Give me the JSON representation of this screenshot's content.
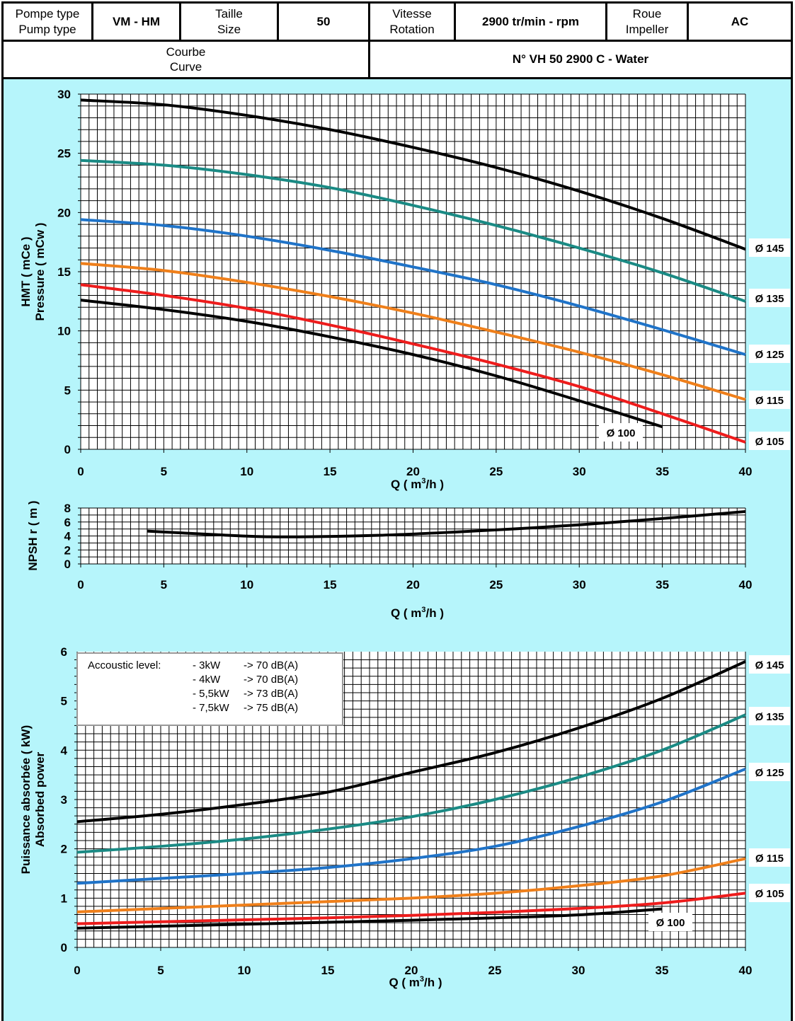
{
  "header": {
    "pump_type_fr": "Pompe type",
    "pump_type_en": "Pump type",
    "pump_type_value": "VM - HM",
    "size_fr": "Taille",
    "size_en": "Size",
    "size_value": "50",
    "speed_fr": "Vitesse",
    "speed_en": "Rotation",
    "speed_value": "2900 tr/min - rpm",
    "impeller_fr": "Roue",
    "impeller_en": "Impeller",
    "impeller_value": "AC",
    "curve_fr": "Courbe",
    "curve_en": "Curve",
    "curve_value": "N° VH 50 2900 C - Water"
  },
  "colors": {
    "background": "#b6f5fb",
    "d145": "#000000",
    "d135": "#1a8a84",
    "d125": "#1f73c8",
    "d115": "#ef7f1a",
    "d105": "#ee1c1c",
    "d100": "#000000"
  },
  "chart_data": [
    {
      "type": "line",
      "xlabel": "Q ( m³/h )",
      "ylabel": "HMT ( mCe )",
      "ylabel2": "Pressure ( mCw )",
      "xlim": [
        0,
        40
      ],
      "ylim": [
        0,
        30
      ],
      "xticks": [
        "0",
        "5",
        "10",
        "15",
        "20",
        "25",
        "30",
        "35",
        "40"
      ],
      "yticks": [
        "0",
        "5",
        "10",
        "15",
        "20",
        "25",
        "30"
      ],
      "grid": true,
      "series": [
        {
          "name": "Ø 145",
          "color_key": "d145",
          "x": [
            0,
            5,
            10,
            15,
            20,
            25,
            30,
            35,
            40
          ],
          "y": [
            29.5,
            29.1,
            28.2,
            27.0,
            25.5,
            23.8,
            21.8,
            19.5,
            16.9
          ]
        },
        {
          "name": "Ø 135",
          "color_key": "d135",
          "x": [
            0,
            5,
            10,
            15,
            20,
            25,
            30,
            35,
            40
          ],
          "y": [
            24.4,
            24.0,
            23.2,
            22.1,
            20.6,
            18.9,
            17.0,
            14.9,
            12.5
          ]
        },
        {
          "name": "Ø 125",
          "color_key": "d125",
          "x": [
            0,
            5,
            10,
            15,
            20,
            25,
            30,
            35,
            40
          ],
          "y": [
            19.4,
            18.9,
            18.0,
            16.8,
            15.4,
            13.9,
            12.1,
            10.1,
            8.0
          ]
        },
        {
          "name": "Ø 115",
          "color_key": "d115",
          "x": [
            0,
            5,
            10,
            15,
            20,
            25,
            30,
            35,
            40
          ],
          "y": [
            15.7,
            15.1,
            14.1,
            12.9,
            11.5,
            9.9,
            8.2,
            6.3,
            4.2
          ]
        },
        {
          "name": "Ø 105",
          "color_key": "d105",
          "x": [
            0,
            5,
            10,
            15,
            20,
            25,
            30,
            35,
            40
          ],
          "y": [
            13.9,
            13.0,
            11.9,
            10.5,
            8.9,
            7.2,
            5.3,
            3.0,
            0.6
          ]
        },
        {
          "name": "Ø 100",
          "color_key": "d100",
          "x": [
            0,
            5,
            10,
            15,
            20,
            25,
            30,
            35
          ],
          "y": [
            12.6,
            11.8,
            10.8,
            9.5,
            8.0,
            6.2,
            4.1,
            1.9
          ]
        }
      ]
    },
    {
      "type": "line",
      "xlabel": "Q ( m³/h )",
      "ylabel": "NPSH r ( m )",
      "xlim": [
        0,
        40
      ],
      "ylim": [
        0,
        8
      ],
      "xticks": [
        "0",
        "5",
        "10",
        "15",
        "20",
        "25",
        "30",
        "35",
        "40"
      ],
      "yticks": [
        "0",
        "2",
        "4",
        "6",
        "8"
      ],
      "grid": true,
      "series": [
        {
          "name": "",
          "color_key": "d145",
          "x": [
            4,
            8,
            11,
            14,
            18,
            22,
            26,
            30,
            35,
            40
          ],
          "y": [
            4.7,
            4.2,
            3.9,
            3.9,
            4.1,
            4.5,
            5.0,
            5.6,
            6.5,
            7.5
          ]
        }
      ]
    },
    {
      "type": "line",
      "xlabel": "Q ( m³/h )",
      "ylabel": "Puissance absorbée ( kW)",
      "ylabel2": "Absorbed power",
      "xlim": [
        0,
        40
      ],
      "ylim": [
        0,
        6
      ],
      "xticks": [
        "0",
        "5",
        "10",
        "15",
        "20",
        "25",
        "30",
        "35",
        "40"
      ],
      "yticks": [
        "0",
        "1",
        "2",
        "3",
        "4",
        "5",
        "6"
      ],
      "grid": true,
      "annotation": {
        "title": "Accoustic level:",
        "rows": [
          {
            "power": "- 3kW",
            "level": "-> 70 dB(A)"
          },
          {
            "power": "- 4kW",
            "level": "-> 70 dB(A)"
          },
          {
            "power": "- 5,5kW",
            "level": "-> 73 dB(A)"
          },
          {
            "power": "- 7,5kW",
            "level": "-> 75 dB(A)"
          }
        ]
      },
      "series": [
        {
          "name": "Ø 145",
          "color_key": "d145",
          "x": [
            0,
            5,
            10,
            15,
            20,
            25,
            30,
            35,
            40
          ],
          "y": [
            2.55,
            2.7,
            2.9,
            3.15,
            3.55,
            3.95,
            4.45,
            5.05,
            5.8
          ]
        },
        {
          "name": "Ø 135",
          "color_key": "d135",
          "x": [
            0,
            5,
            10,
            15,
            20,
            25,
            30,
            35,
            40
          ],
          "y": [
            1.93,
            2.05,
            2.2,
            2.4,
            2.65,
            3.0,
            3.45,
            4.0,
            4.72
          ]
        },
        {
          "name": "Ø 125",
          "color_key": "d125",
          "x": [
            0,
            5,
            10,
            15,
            20,
            25,
            30,
            35,
            40
          ],
          "y": [
            1.3,
            1.4,
            1.5,
            1.62,
            1.8,
            2.05,
            2.45,
            2.95,
            3.62
          ]
        },
        {
          "name": "Ø 115",
          "color_key": "d115",
          "x": [
            0,
            5,
            10,
            15,
            20,
            25,
            30,
            35,
            40
          ],
          "y": [
            0.72,
            0.79,
            0.86,
            0.93,
            1.0,
            1.1,
            1.25,
            1.45,
            1.8
          ]
        },
        {
          "name": "Ø 105",
          "color_key": "d105",
          "x": [
            0,
            5,
            10,
            15,
            20,
            25,
            30,
            35,
            40
          ],
          "y": [
            0.48,
            0.52,
            0.56,
            0.6,
            0.65,
            0.71,
            0.79,
            0.9,
            1.1
          ]
        },
        {
          "name": "Ø 100",
          "color_key": "d100",
          "x": [
            0,
            5,
            10,
            15,
            20,
            25,
            30,
            35
          ],
          "y": [
            0.39,
            0.43,
            0.47,
            0.51,
            0.55,
            0.6,
            0.66,
            0.78
          ]
        }
      ]
    }
  ]
}
